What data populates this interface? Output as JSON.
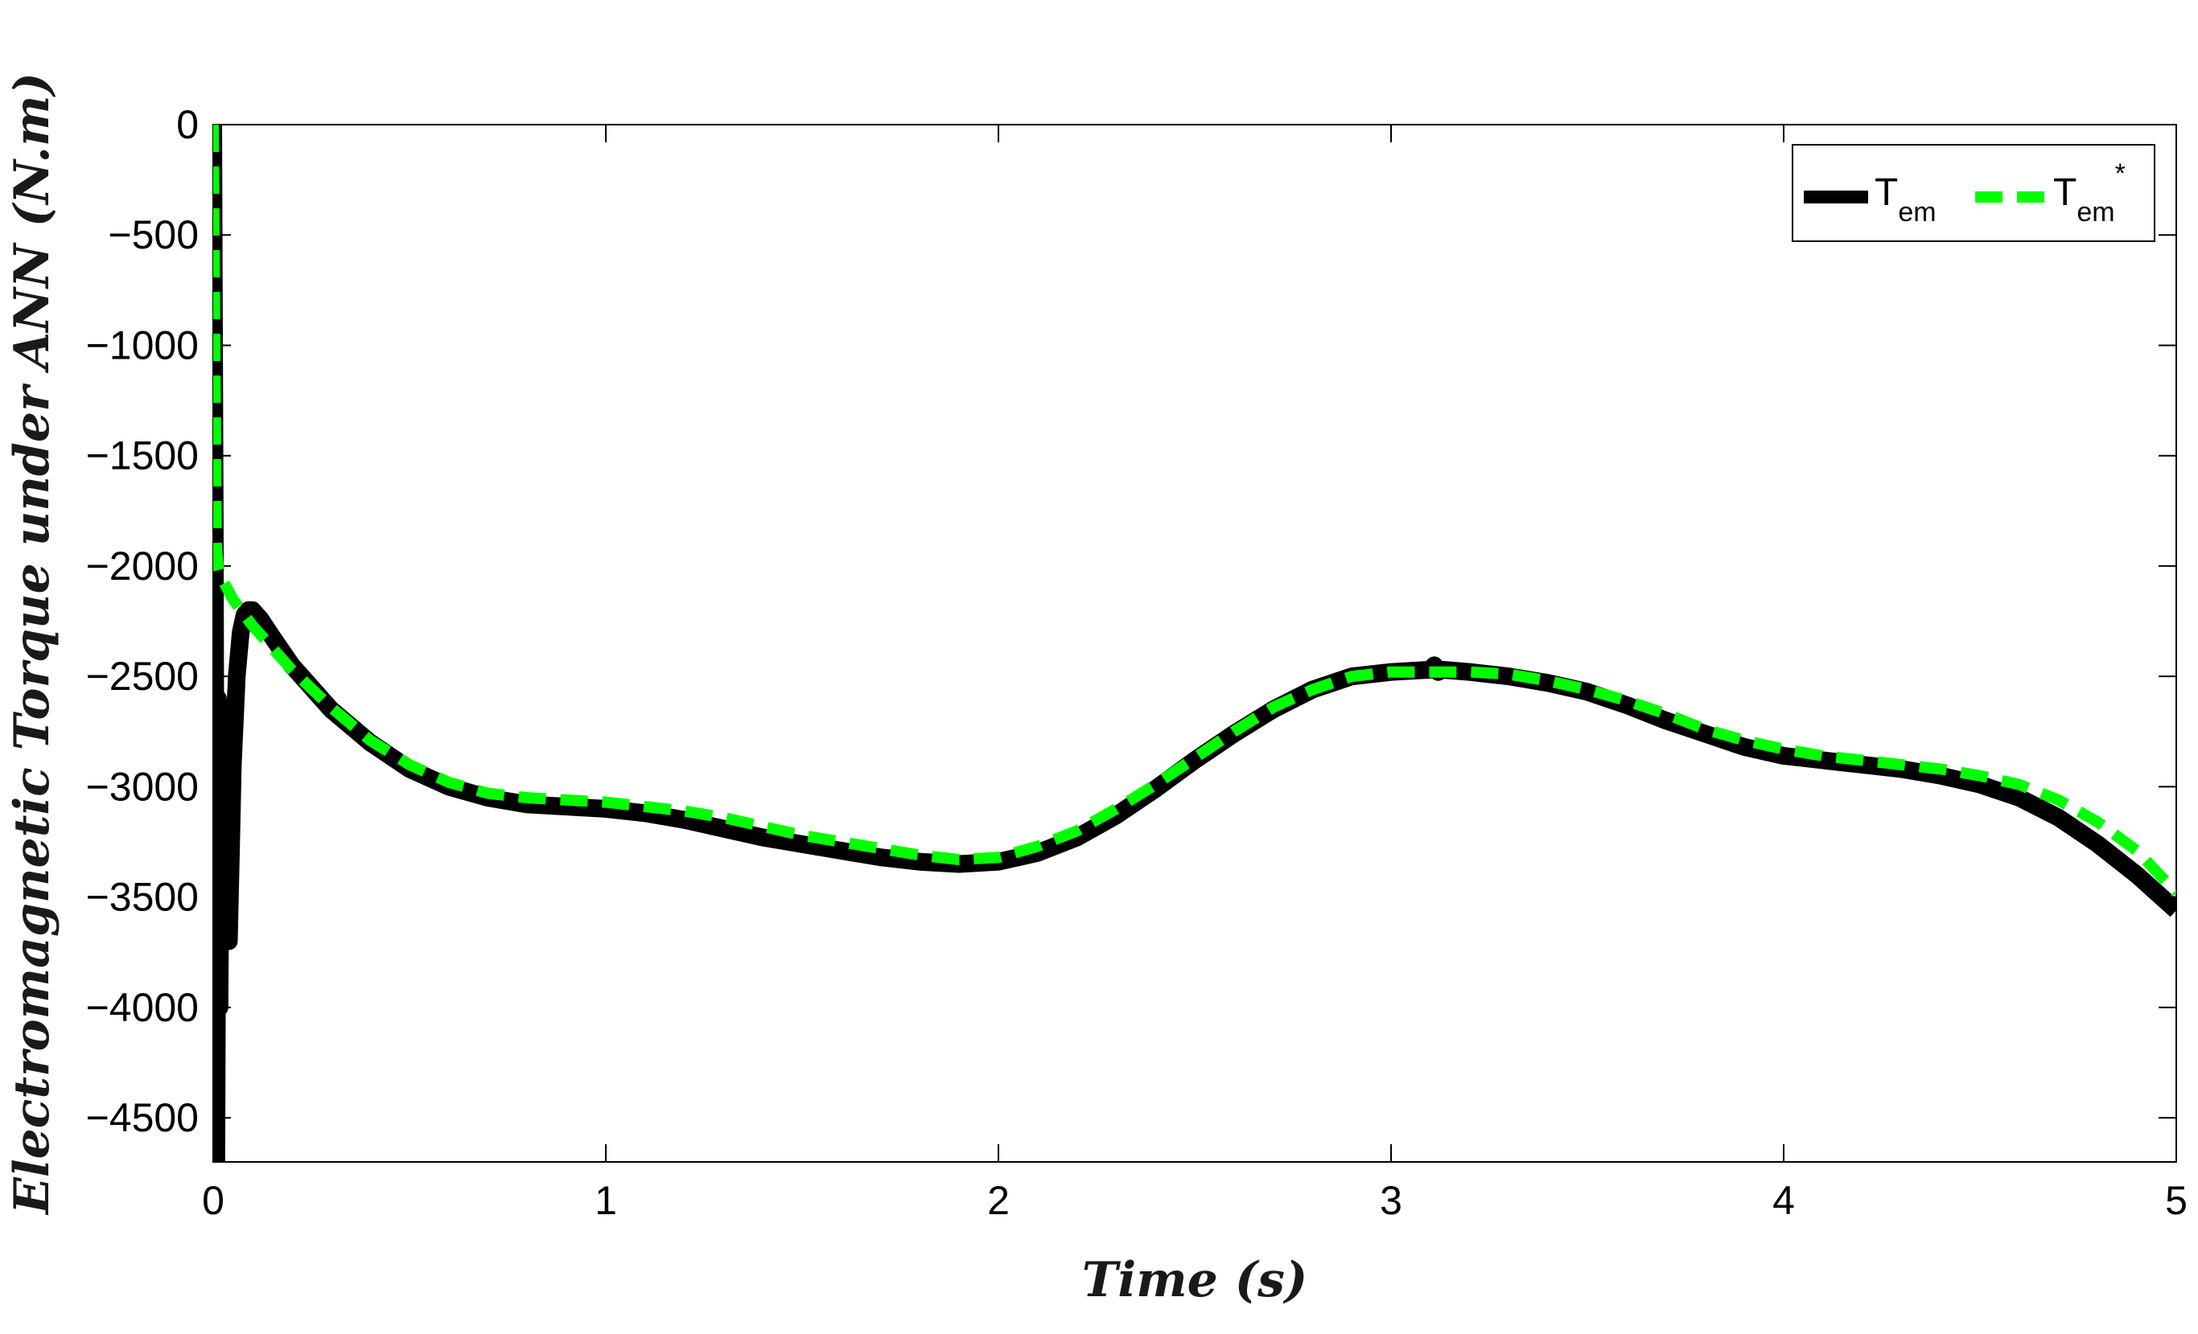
{
  "chart_data": {
    "type": "line",
    "title": "",
    "xlabel": "Time (s)",
    "ylabel": "Electromagnetic Torque under ANN (N.m)",
    "xlim": [
      0,
      5
    ],
    "ylim": [
      -4700,
      0
    ],
    "x_ticks": [
      "0",
      "1",
      "2",
      "3",
      "4",
      "5"
    ],
    "y_ticks": [
      "0",
      "−500",
      "−1000",
      "−1500",
      "−2000",
      "−2500",
      "−3000",
      "−3500",
      "−4000",
      "−4500"
    ],
    "x_tick_values": [
      0,
      1,
      2,
      3,
      4,
      5
    ],
    "y_tick_values": [
      0,
      -500,
      -1000,
      -1500,
      -2000,
      -2500,
      -3000,
      -3500,
      -4000,
      -4500
    ],
    "grid": false,
    "legend_position": "top-right",
    "legend": [
      {
        "base": "T",
        "sub": "em",
        "sup": ""
      },
      {
        "base": "T",
        "sub": "em",
        "sup": "*"
      }
    ],
    "series": [
      {
        "name": "Tem",
        "color": "#000000",
        "style": "solid",
        "x": [
          0,
          0.004,
          0.008,
          0.012,
          0.016,
          0.02,
          0.024,
          0.028,
          0.032,
          0.036,
          0.04,
          0.045,
          0.05,
          0.06,
          0.07,
          0.08,
          0.09,
          0.1,
          0.12,
          0.15,
          0.2,
          0.3,
          0.4,
          0.5,
          0.6,
          0.7,
          0.8,
          0.9,
          1.0,
          1.1,
          1.2,
          1.3,
          1.4,
          1.5,
          1.6,
          1.7,
          1.8,
          1.9,
          2.0,
          2.1,
          2.2,
          2.3,
          2.4,
          2.5,
          2.6,
          2.7,
          2.8,
          2.9,
          3.0,
          3.1,
          3.11,
          3.12,
          3.13,
          3.2,
          3.3,
          3.4,
          3.5,
          3.6,
          3.7,
          3.8,
          3.9,
          4.0,
          4.1,
          4.2,
          4.3,
          4.4,
          4.5,
          4.6,
          4.7,
          4.8,
          4.9,
          5.0
        ],
        "y": [
          0,
          -1900,
          -4700,
          -2600,
          -4000,
          -3000,
          -3700,
          -2700,
          -3500,
          -3000,
          -3700,
          -3300,
          -2900,
          -2500,
          -2300,
          -2220,
          -2200,
          -2200,
          -2240,
          -2320,
          -2450,
          -2650,
          -2800,
          -2920,
          -3000,
          -3050,
          -3080,
          -3090,
          -3100,
          -3120,
          -3150,
          -3190,
          -3230,
          -3260,
          -3290,
          -3320,
          -3340,
          -3350,
          -3340,
          -3300,
          -3230,
          -3130,
          -3010,
          -2880,
          -2760,
          -2650,
          -2560,
          -2500,
          -2480,
          -2470,
          -2450,
          -2480,
          -2470,
          -2480,
          -2500,
          -2530,
          -2570,
          -2630,
          -2700,
          -2760,
          -2820,
          -2860,
          -2880,
          -2900,
          -2920,
          -2950,
          -2990,
          -3050,
          -3140,
          -3260,
          -3400,
          -3560
        ],
        "line_width": 22
      },
      {
        "name": "Tem*",
        "color": "#00ff00",
        "style": "dashed",
        "x": [
          0,
          0.004,
          0.008,
          0.012,
          0.02,
          0.05,
          0.1,
          0.15,
          0.2,
          0.3,
          0.4,
          0.5,
          0.6,
          0.7,
          0.8,
          0.9,
          1.0,
          1.1,
          1.2,
          1.3,
          1.4,
          1.5,
          1.6,
          1.7,
          1.8,
          1.9,
          2.0,
          2.1,
          2.2,
          2.3,
          2.4,
          2.5,
          2.6,
          2.7,
          2.8,
          2.9,
          3.0,
          3.1,
          3.2,
          3.3,
          3.4,
          3.5,
          3.6,
          3.7,
          3.8,
          3.9,
          4.0,
          4.1,
          4.2,
          4.3,
          4.4,
          4.5,
          4.6,
          4.7,
          4.8,
          4.9,
          5.0
        ],
        "y": [
          0,
          -1000,
          -1900,
          -2000,
          -2050,
          -2150,
          -2270,
          -2370,
          -2470,
          -2640,
          -2790,
          -2900,
          -2980,
          -3030,
          -3050,
          -3060,
          -3070,
          -3090,
          -3110,
          -3140,
          -3180,
          -3220,
          -3250,
          -3280,
          -3310,
          -3330,
          -3320,
          -3270,
          -3200,
          -3100,
          -2990,
          -2870,
          -2750,
          -2640,
          -2560,
          -2500,
          -2480,
          -2480,
          -2480,
          -2490,
          -2520,
          -2560,
          -2610,
          -2670,
          -2740,
          -2790,
          -2830,
          -2860,
          -2880,
          -2900,
          -2920,
          -2950,
          -2990,
          -3060,
          -3160,
          -3290,
          -3480
        ],
        "line_width": 14
      }
    ]
  }
}
